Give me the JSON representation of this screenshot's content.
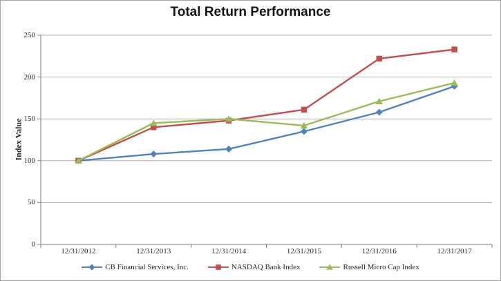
{
  "chart_data": {
    "type": "line",
    "title": "Total Return Performance",
    "xlabel": "",
    "ylabel": "Index Value",
    "categories": [
      "12/31/2012",
      "12/31/2013",
      "12/31/2014",
      "12/31/2015",
      "12/31/2016",
      "12/31/2017"
    ],
    "series": [
      {
        "name": "CB Financial Services, Inc.",
        "color": "#4F81BD",
        "marker": "diamond",
        "values": [
          100,
          108,
          114,
          135,
          158,
          189
        ]
      },
      {
        "name": "NASDAQ Bank Index",
        "color": "#C0504D",
        "marker": "square",
        "values": [
          100,
          140,
          148,
          161,
          222,
          233
        ]
      },
      {
        "name": "Russell Micro Cap Index",
        "color": "#9BBB59",
        "marker": "triangle",
        "values": [
          100,
          145,
          150,
          142,
          171,
          193
        ]
      }
    ],
    "ylim": [
      0,
      250
    ],
    "yticks": [
      0,
      50,
      100,
      150,
      200,
      250
    ],
    "grid": true,
    "legend_position": "bottom"
  },
  "colors": {
    "grid": "#b3b3b3",
    "axis": "#7f7f7f",
    "text": "#262626",
    "border": "#a6a6a6",
    "background": "#ffffff"
  }
}
